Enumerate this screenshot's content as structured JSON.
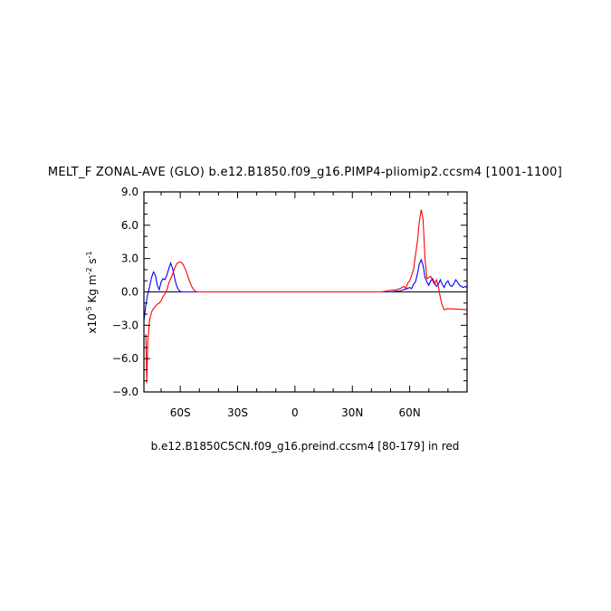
{
  "chart_data": {
    "type": "line",
    "title": "MELT_F ZONAL-AVE (GLO) b.e12.B1850.f09_g16.PIMP4-pliomip2.ccsm4 [1001-1100]",
    "xlabel": "b.e12.B1850C5CN.f09_g16.preind.ccsm4 [80-179] in red",
    "ylabel_main": "x10",
    "ylabel_exp": "-5",
    "ylabel_units": "Kg m",
    "ylabel_units_exp": "-2",
    "ylabel_s": "s",
    "ylabel_s_exp": "-1",
    "xlim": [
      -79,
      90
    ],
    "ylim": [
      -9.0,
      9.0
    ],
    "x_ticks": [
      {
        "value": -60,
        "label": "60S"
      },
      {
        "value": -30,
        "label": "30S"
      },
      {
        "value": 0,
        "label": "0"
      },
      {
        "value": 30,
        "label": "30N"
      },
      {
        "value": 60,
        "label": "60N"
      }
    ],
    "y_ticks": [
      {
        "value": -9,
        "label": "−9.0"
      },
      {
        "value": -6,
        "label": "−6.0"
      },
      {
        "value": -3,
        "label": "−3.0"
      },
      {
        "value": 0,
        "label": "0.0"
      },
      {
        "value": 3,
        "label": "3.0"
      },
      {
        "value": 6,
        "label": "6.0"
      },
      {
        "value": 9,
        "label": "9.0"
      }
    ],
    "series": [
      {
        "color": "#0000ff",
        "points": [
          [
            -79,
            -2.6
          ],
          [
            -78,
            -1.2
          ],
          [
            -77,
            -0.2
          ],
          [
            -76,
            0.5
          ],
          [
            -75,
            1.3
          ],
          [
            -74,
            1.8
          ],
          [
            -73,
            1.5
          ],
          [
            -72,
            0.6
          ],
          [
            -71,
            0.2
          ],
          [
            -70,
            0.9
          ],
          [
            -69,
            1.2
          ],
          [
            -68,
            1.1
          ],
          [
            -67,
            1.5
          ],
          [
            -66,
            2.1
          ],
          [
            -65,
            2.6
          ],
          [
            -64,
            2.1
          ],
          [
            -63,
            1.3
          ],
          [
            -62,
            0.6
          ],
          [
            -61,
            0.2
          ],
          [
            -60,
            0.05
          ],
          [
            -59,
            0.0
          ],
          [
            44,
            0.0
          ],
          [
            50,
            0.0
          ],
          [
            55,
            0.1
          ],
          [
            58,
            0.25
          ],
          [
            60,
            0.4
          ],
          [
            61,
            0.3
          ],
          [
            62,
            0.7
          ],
          [
            63,
            0.9
          ],
          [
            64,
            1.6
          ],
          [
            65,
            2.5
          ],
          [
            66,
            2.9
          ],
          [
            67,
            2.4
          ],
          [
            68,
            1.3
          ],
          [
            69,
            0.9
          ],
          [
            70,
            0.6
          ],
          [
            71,
            1.0
          ],
          [
            72,
            1.2
          ],
          [
            73,
            0.8
          ],
          [
            74,
            0.5
          ],
          [
            75,
            0.7
          ],
          [
            76,
            1.1
          ],
          [
            77,
            0.7
          ],
          [
            78,
            0.4
          ],
          [
            79,
            0.8
          ],
          [
            80,
            1.0
          ],
          [
            81,
            0.6
          ],
          [
            82,
            0.5
          ],
          [
            83,
            0.7
          ],
          [
            84,
            1.1
          ],
          [
            85,
            0.9
          ],
          [
            86,
            0.6
          ],
          [
            87,
            0.5
          ],
          [
            88,
            0.4
          ],
          [
            89,
            0.5
          ],
          [
            90,
            0.4
          ]
        ]
      },
      {
        "color": "#ff0000",
        "points": [
          [
            -78,
            -3.8
          ],
          [
            -77.5,
            -8.2
          ],
          [
            -77,
            -4.5
          ],
          [
            -76,
            -2.5
          ],
          [
            -75,
            -1.8
          ],
          [
            -74,
            -1.5
          ],
          [
            -73,
            -1.3
          ],
          [
            -72,
            -1.1
          ],
          [
            -71,
            -1.0
          ],
          [
            -70,
            -0.8
          ],
          [
            -69,
            -0.4
          ],
          [
            -68,
            -0.2
          ],
          [
            -67,
            0.2
          ],
          [
            -66,
            0.8
          ],
          [
            -65,
            1.2
          ],
          [
            -64,
            1.6
          ],
          [
            -63,
            2.1
          ],
          [
            -62,
            2.5
          ],
          [
            -61,
            2.65
          ],
          [
            -60,
            2.7
          ],
          [
            -59,
            2.6
          ],
          [
            -58,
            2.3
          ],
          [
            -57,
            1.9
          ],
          [
            -56,
            1.4
          ],
          [
            -55,
            0.9
          ],
          [
            -54,
            0.5
          ],
          [
            -53,
            0.2
          ],
          [
            -52,
            0.05
          ],
          [
            -51,
            0.0
          ],
          [
            45,
            0.0
          ],
          [
            47,
            0.05
          ],
          [
            50,
            0.15
          ],
          [
            53,
            0.2
          ],
          [
            55,
            0.3
          ],
          [
            57,
            0.5
          ],
          [
            58,
            0.3
          ],
          [
            59,
            0.8
          ],
          [
            60,
            1.0
          ],
          [
            61,
            1.5
          ],
          [
            62,
            2.0
          ],
          [
            63,
            3.3
          ],
          [
            64,
            4.5
          ],
          [
            65,
            6.3
          ],
          [
            66,
            7.4
          ],
          [
            67,
            6.5
          ],
          [
            68,
            3.0
          ],
          [
            69,
            1.2
          ],
          [
            70,
            1.3
          ],
          [
            71,
            1.4
          ],
          [
            72,
            1.0
          ],
          [
            73,
            0.7
          ],
          [
            74,
            1.1
          ],
          [
            75,
            0.5
          ],
          [
            76,
            -0.5
          ],
          [
            77,
            -1.2
          ],
          [
            78,
            -1.6
          ],
          [
            80,
            -1.5
          ],
          [
            85,
            -1.55
          ],
          [
            90,
            -1.6
          ]
        ]
      }
    ]
  }
}
